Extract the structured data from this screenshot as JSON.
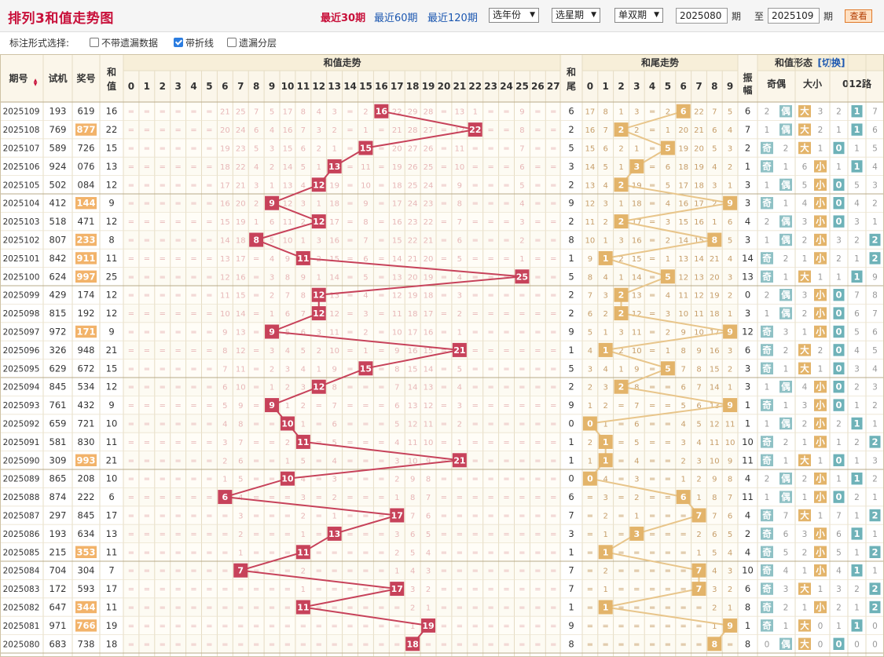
{
  "header": {
    "title": "排列3和值走势图",
    "periods": [
      "最近30期",
      "最近60期",
      "最近120期"
    ],
    "active_period": 0,
    "year_select": "选年份",
    "week_select": "选星期",
    "parity_select": "单双期",
    "from_issue": "2025080",
    "from_unit": "期",
    "to_label": "至",
    "to_issue": "2025109",
    "to_unit": "期",
    "query_label": "查看"
  },
  "options": {
    "label": "标注形式选择:",
    "items": [
      {
        "label": "不带遗漏数据",
        "checked": false
      },
      {
        "label": "带折线",
        "checked": true
      },
      {
        "label": "遗漏分层",
        "checked": false
      }
    ]
  },
  "table": {
    "col_issue": "期号",
    "sort_icon": "sort-icon",
    "col_trial": "试机",
    "col_prize": "奖号",
    "col_sum": [
      "和",
      "值"
    ],
    "group_sum": "和值走势",
    "col_tail": [
      "和",
      "尾"
    ],
    "group_tail": "和尾走势",
    "group_shape": "和值形态",
    "switch_label": "[切换]",
    "col_amp": [
      "振",
      "幅"
    ],
    "col_oddeven": "奇偶",
    "col_bigsmall": "大小",
    "col_012": "012路",
    "mark_odd": "奇",
    "mark_even": "偶",
    "mark_big": "大",
    "mark_small": "小",
    "sum_labels": [
      "0",
      "1",
      "2",
      "3",
      "4",
      "5",
      "6",
      "7",
      "8",
      "9",
      "10",
      "11",
      "12",
      "13",
      "14",
      "15",
      "16",
      "17",
      "18",
      "19",
      "20",
      "21",
      "22",
      "23",
      "24",
      "25",
      "26",
      "27"
    ],
    "tail_labels": [
      "0",
      "1",
      "2",
      "3",
      "4",
      "5",
      "6",
      "7",
      "8",
      "9"
    ],
    "route_labels": [
      "0",
      "1",
      "2"
    ],
    "rows": [
      {
        "issue": "2025109",
        "trial": "193",
        "prize": "619",
        "pair": false,
        "sum": 16,
        "amp": 6,
        "oe": "偶",
        "bs": "大",
        "r": 1
      },
      {
        "issue": "2025108",
        "trial": "769",
        "prize": "877",
        "pair": true,
        "sum": 22,
        "amp": 7,
        "oe": "偶",
        "bs": "大",
        "r": 1
      },
      {
        "issue": "2025107",
        "trial": "589",
        "prize": "726",
        "pair": false,
        "sum": 15,
        "amp": 2,
        "oe": "奇",
        "bs": "大",
        "r": 0
      },
      {
        "issue": "2025106",
        "trial": "924",
        "prize": "076",
        "pair": false,
        "sum": 13,
        "amp": 1,
        "oe": "奇",
        "bs": "小",
        "r": 1
      },
      {
        "issue": "2025105",
        "trial": "502",
        "prize": "084",
        "pair": false,
        "sum": 12,
        "amp": 3,
        "oe": "偶",
        "bs": "小",
        "r": 0
      },
      {
        "issue": "2025104",
        "trial": "412",
        "prize": "144",
        "pair": true,
        "sum": 9,
        "amp": 3,
        "oe": "奇",
        "bs": "小",
        "r": 0
      },
      {
        "issue": "2025103",
        "trial": "518",
        "prize": "471",
        "pair": false,
        "sum": 12,
        "amp": 4,
        "oe": "偶",
        "bs": "小",
        "r": 0
      },
      {
        "issue": "2025102",
        "trial": "807",
        "prize": "233",
        "pair": true,
        "sum": 8,
        "amp": 3,
        "oe": "偶",
        "bs": "小",
        "r": 2
      },
      {
        "issue": "2025101",
        "trial": "842",
        "prize": "911",
        "pair": true,
        "sum": 11,
        "amp": 14,
        "oe": "奇",
        "bs": "小",
        "r": 2
      },
      {
        "issue": "2025100",
        "trial": "624",
        "prize": "997",
        "pair": true,
        "sum": 25,
        "amp": 13,
        "oe": "奇",
        "bs": "大",
        "r": 1
      },
      {
        "issue": "2025099",
        "trial": "429",
        "prize": "174",
        "pair": false,
        "sum": 12,
        "amp": 0,
        "oe": "偶",
        "bs": "小",
        "r": 0
      },
      {
        "issue": "2025098",
        "trial": "815",
        "prize": "192",
        "pair": false,
        "sum": 12,
        "amp": 3,
        "oe": "偶",
        "bs": "小",
        "r": 0
      },
      {
        "issue": "2025097",
        "trial": "972",
        "prize": "171",
        "pair": true,
        "sum": 9,
        "amp": 12,
        "oe": "奇",
        "bs": "小",
        "r": 0
      },
      {
        "issue": "2025096",
        "trial": "326",
        "prize": "948",
        "pair": false,
        "sum": 21,
        "amp": 6,
        "oe": "奇",
        "bs": "大",
        "r": 0
      },
      {
        "issue": "2025095",
        "trial": "629",
        "prize": "672",
        "pair": false,
        "sum": 15,
        "amp": 3,
        "oe": "奇",
        "bs": "大",
        "r": 0
      },
      {
        "issue": "2025094",
        "trial": "845",
        "prize": "534",
        "pair": false,
        "sum": 12,
        "amp": 3,
        "oe": "偶",
        "bs": "小",
        "r": 0
      },
      {
        "issue": "2025093",
        "trial": "761",
        "prize": "432",
        "pair": false,
        "sum": 9,
        "amp": 1,
        "oe": "奇",
        "bs": "小",
        "r": 0
      },
      {
        "issue": "2025092",
        "trial": "659",
        "prize": "721",
        "pair": false,
        "sum": 10,
        "amp": 1,
        "oe": "偶",
        "bs": "小",
        "r": 1
      },
      {
        "issue": "2025091",
        "trial": "581",
        "prize": "830",
        "pair": false,
        "sum": 11,
        "amp": 10,
        "oe": "奇",
        "bs": "小",
        "r": 2
      },
      {
        "issue": "2025090",
        "trial": "309",
        "prize": "993",
        "pair": true,
        "sum": 21,
        "amp": 11,
        "oe": "奇",
        "bs": "大",
        "r": 0
      },
      {
        "issue": "2025089",
        "trial": "865",
        "prize": "208",
        "pair": false,
        "sum": 10,
        "amp": 4,
        "oe": "偶",
        "bs": "小",
        "r": 1
      },
      {
        "issue": "2025088",
        "trial": "874",
        "prize": "222",
        "pair": false,
        "sum": 6,
        "amp": 11,
        "oe": "偶",
        "bs": "小",
        "r": 0
      },
      {
        "issue": "2025087",
        "trial": "297",
        "prize": "845",
        "pair": false,
        "sum": 17,
        "amp": 4,
        "oe": "奇",
        "bs": "大",
        "r": 2
      },
      {
        "issue": "2025086",
        "trial": "193",
        "prize": "634",
        "pair": false,
        "sum": 13,
        "amp": 2,
        "oe": "奇",
        "bs": "小",
        "r": 1
      },
      {
        "issue": "2025085",
        "trial": "215",
        "prize": "353",
        "pair": true,
        "sum": 11,
        "amp": 4,
        "oe": "奇",
        "bs": "小",
        "r": 2
      },
      {
        "issue": "2025084",
        "trial": "704",
        "prize": "304",
        "pair": false,
        "sum": 7,
        "amp": 10,
        "oe": "奇",
        "bs": "小",
        "r": 1
      },
      {
        "issue": "2025083",
        "trial": "172",
        "prize": "593",
        "pair": false,
        "sum": 17,
        "amp": 6,
        "oe": "奇",
        "bs": "大",
        "r": 2
      },
      {
        "issue": "2025082",
        "trial": "647",
        "prize": "344",
        "pair": true,
        "sum": 11,
        "amp": 8,
        "oe": "奇",
        "bs": "小",
        "r": 2
      },
      {
        "issue": "2025081",
        "trial": "971",
        "prize": "766",
        "pair": true,
        "sum": 19,
        "amp": 1,
        "oe": "奇",
        "bs": "大",
        "r": 1
      },
      {
        "issue": "2025080",
        "trial": "683",
        "prize": "738",
        "pair": false,
        "sum": 18,
        "amp": 8,
        "oe": "偶",
        "bs": "大",
        "r": 0
      }
    ]
  },
  "colors": {
    "sum_ball": "#c7425a",
    "sum_line": "#c7425a",
    "tail_ball": "#e3b46a",
    "tail_line": "#e8c58a",
    "shape_cell": "#8fc1c5",
    "bigsmall_cell": "#e3b46a",
    "route_cell": "#6eb2b8",
    "pair_bg": "#f2b36a",
    "title": "#c8103a",
    "link": "#1a56b0"
  }
}
